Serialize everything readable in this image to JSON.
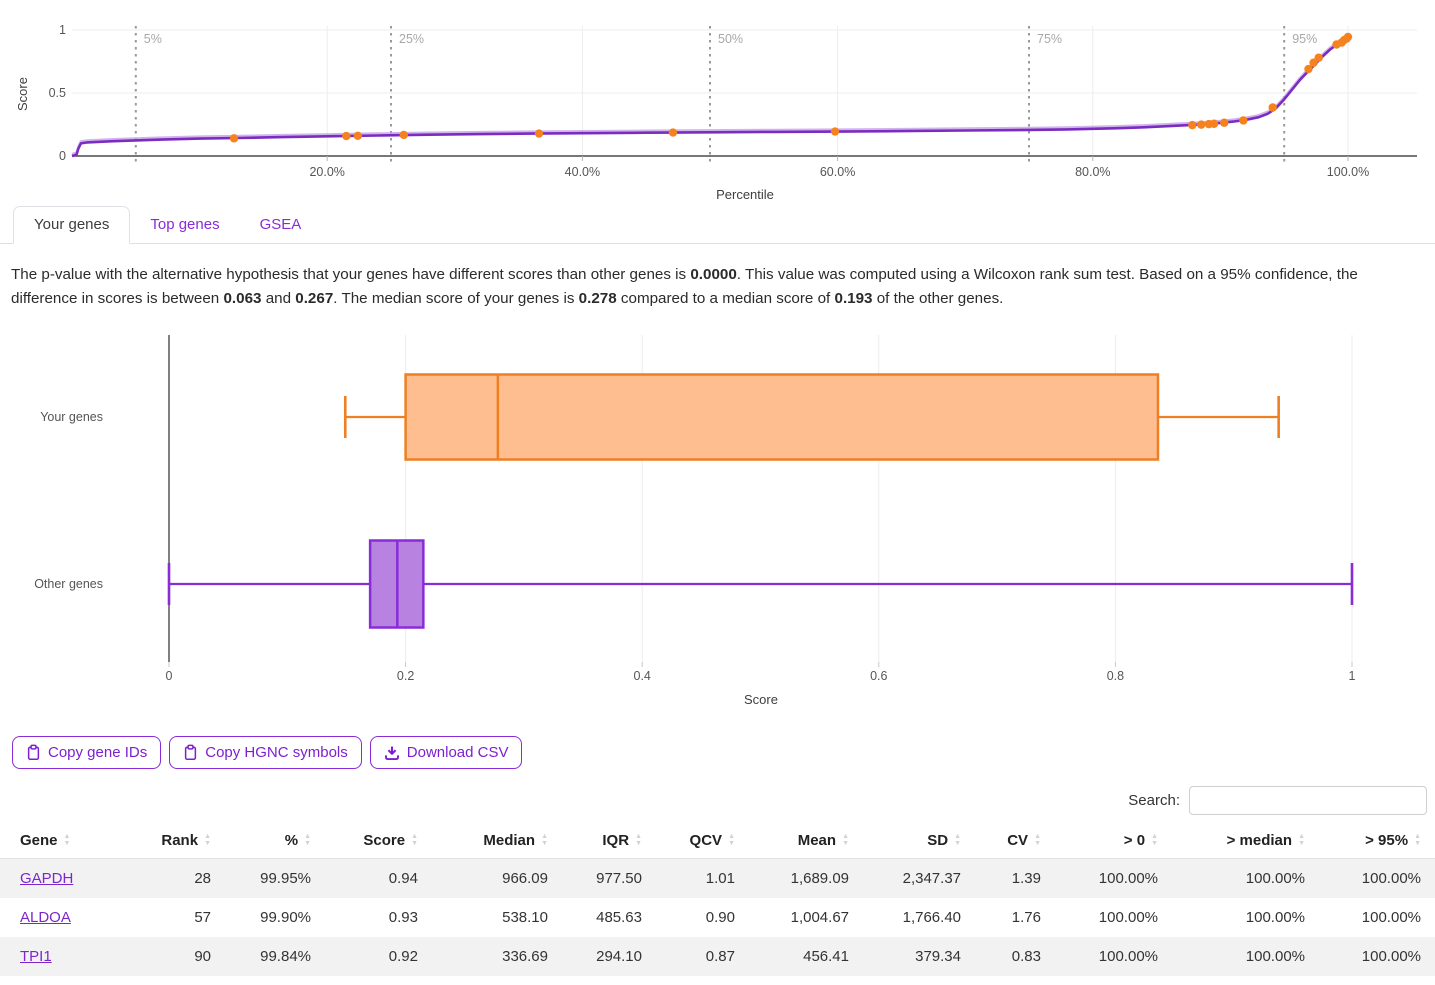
{
  "colors": {
    "purple_line": "#7B2CC0",
    "purple_line_light": "#C29BE6",
    "purple_box_stroke": "#8A2BD8",
    "purple_box_fill": "#B883E0",
    "orange_stroke": "#EE7F22",
    "orange_fill": "#FFBE90",
    "orange_dot": "#F5821F",
    "accent_text": "#7D1FD0",
    "grid": "#ededed",
    "axis": "#4a4a4a",
    "vline": "#999999",
    "vline_label": "#a8a8a8",
    "tick_label": "#565656",
    "row_stripe": "#f2f2f2"
  },
  "tabs": [
    {
      "label": "Your genes",
      "active": true
    },
    {
      "label": "Top genes",
      "active": false
    },
    {
      "label": "GSEA",
      "active": false
    }
  ],
  "stats_paragraph": {
    "segments": [
      {
        "text": "The p-value with the alternative hypothesis that your genes have different scores than other genes is ",
        "bold": false
      },
      {
        "text": "0.0000",
        "bold": true
      },
      {
        "text": ". This value was computed using a Wilcoxon rank sum test. Based on a 95% confidence, the difference in scores is between ",
        "bold": false
      },
      {
        "text": "0.063",
        "bold": true
      },
      {
        "text": " and ",
        "bold": false
      },
      {
        "text": "0.267",
        "bold": true
      },
      {
        "text": ". The median score of your genes is ",
        "bold": false
      },
      {
        "text": "0.278",
        "bold": true
      },
      {
        "text": " compared to a median score of ",
        "bold": false
      },
      {
        "text": "0.193",
        "bold": true
      },
      {
        "text": " of the other genes.",
        "bold": false
      }
    ]
  },
  "buttons": [
    {
      "label": "Copy gene IDs",
      "icon": "clipboard-icon"
    },
    {
      "label": "Copy HGNC symbols",
      "icon": "clipboard-icon"
    },
    {
      "label": "Download CSV",
      "icon": "download-icon"
    }
  ],
  "search": {
    "label": "Search:",
    "value": ""
  },
  "table": {
    "columns": [
      {
        "label": "Gene",
        "align": "left"
      },
      {
        "label": "Rank",
        "align": "right"
      },
      {
        "label": "%",
        "align": "right"
      },
      {
        "label": "Score",
        "align": "right"
      },
      {
        "label": "Median",
        "align": "right"
      },
      {
        "label": "IQR",
        "align": "right"
      },
      {
        "label": "QCV",
        "align": "right"
      },
      {
        "label": "Mean",
        "align": "right"
      },
      {
        "label": "SD",
        "align": "right"
      },
      {
        "label": "CV",
        "align": "right"
      },
      {
        "label": "> 0",
        "align": "right"
      },
      {
        "label": "> median",
        "align": "right"
      },
      {
        "label": "> 95%",
        "align": "right"
      }
    ],
    "rows": [
      {
        "gene": "GAPDH",
        "values": [
          "28",
          "99.95%",
          "0.94",
          "966.09",
          "977.50",
          "1.01",
          "1,689.09",
          "2,347.37",
          "1.39",
          "100.00%",
          "100.00%",
          "100.00%"
        ]
      },
      {
        "gene": "ALDOA",
        "values": [
          "57",
          "99.90%",
          "0.93",
          "538.10",
          "485.63",
          "0.90",
          "1,004.67",
          "1,766.40",
          "1.76",
          "100.00%",
          "100.00%",
          "100.00%"
        ]
      },
      {
        "gene": "TPI1",
        "values": [
          "90",
          "99.84%",
          "0.92",
          "336.69",
          "294.10",
          "0.87",
          "456.41",
          "379.34",
          "0.83",
          "100.00%",
          "100.00%",
          "100.00%"
        ]
      }
    ]
  },
  "chart_data": [
    {
      "type": "line",
      "title": "",
      "xlabel": "Percentile",
      "ylabel": "Score",
      "xlim": [
        0,
        105.5
      ],
      "ylim": [
        0,
        1
      ],
      "grid": true,
      "x_ticks": [
        {
          "value": 20,
          "label": "20.0%"
        },
        {
          "value": 40,
          "label": "40.0%"
        },
        {
          "value": 60,
          "label": "60.0%"
        },
        {
          "value": 80,
          "label": "80.0%"
        },
        {
          "value": 100,
          "label": "100.0%"
        }
      ],
      "y_ticks": [
        {
          "value": 0,
          "label": "0"
        },
        {
          "value": 0.5,
          "label": "0.5"
        },
        {
          "value": 1,
          "label": "1"
        }
      ],
      "percentile_vlines": [
        {
          "value": 5,
          "label": "5%"
        },
        {
          "value": 25,
          "label": "25%"
        },
        {
          "value": 50,
          "label": "50%"
        },
        {
          "value": 75,
          "label": "75%"
        },
        {
          "value": 95,
          "label": "95%"
        }
      ],
      "series": [
        {
          "name": "all-genes-score-curve",
          "x": [
            0,
            0.35,
            0.5,
            0.7,
            1.2,
            2,
            3,
            5,
            7,
            10,
            13,
            16,
            20,
            24,
            28,
            32,
            36,
            40,
            45,
            50,
            55,
            60,
            65,
            70,
            75,
            78,
            80,
            82,
            84,
            86,
            88,
            89,
            90,
            91,
            92,
            93,
            93.7,
            94.3,
            95,
            95.6,
            96.2,
            96.8,
            97.4,
            98,
            98.6,
            99.2,
            99.6,
            100
          ],
          "y": [
            0,
            0.01,
            0.06,
            0.1,
            0.108,
            0.112,
            0.117,
            0.124,
            0.13,
            0.138,
            0.143,
            0.149,
            0.156,
            0.163,
            0.169,
            0.174,
            0.178,
            0.181,
            0.185,
            0.188,
            0.191,
            0.194,
            0.198,
            0.202,
            0.207,
            0.211,
            0.216,
            0.221,
            0.228,
            0.237,
            0.248,
            0.255,
            0.263,
            0.273,
            0.287,
            0.308,
            0.335,
            0.375,
            0.45,
            0.525,
            0.6,
            0.665,
            0.725,
            0.79,
            0.845,
            0.89,
            0.915,
            0.945
          ]
        }
      ],
      "markers": {
        "name": "your-genes-points",
        "x": [
          12.7,
          21.5,
          22.4,
          26.0,
          36.6,
          47.1,
          59.8,
          87.8,
          88.5,
          89.1,
          89.5,
          90.3,
          91.8,
          94.1,
          96.9,
          97.3,
          97.7,
          99.1,
          99.5,
          99.7,
          99.9,
          100.0
        ],
        "y": [
          0.14,
          0.158,
          0.16,
          0.167,
          0.178,
          0.186,
          0.194,
          0.245,
          0.249,
          0.253,
          0.256,
          0.264,
          0.282,
          0.385,
          0.69,
          0.74,
          0.78,
          0.885,
          0.9,
          0.92,
          0.932,
          0.945
        ]
      }
    },
    {
      "type": "boxplot",
      "xlabel": "Score",
      "xlim": [
        0,
        1
      ],
      "grid": true,
      "x_ticks": [
        {
          "value": 0,
          "label": "0"
        },
        {
          "value": 0.2,
          "label": "0.2"
        },
        {
          "value": 0.4,
          "label": "0.4"
        },
        {
          "value": 0.6,
          "label": "0.6"
        },
        {
          "value": 0.8,
          "label": "0.8"
        },
        {
          "value": 1,
          "label": "1"
        }
      ],
      "groups": [
        {
          "label": "Your genes",
          "min": 0.149,
          "q1": 0.2,
          "median": 0.278,
          "q3": 0.836,
          "max": 0.938,
          "color": "orange"
        },
        {
          "label": "Other genes",
          "min": 0.0,
          "q1": 0.17,
          "median": 0.193,
          "q3": 0.215,
          "max": 1.0,
          "color": "purple"
        }
      ]
    }
  ]
}
